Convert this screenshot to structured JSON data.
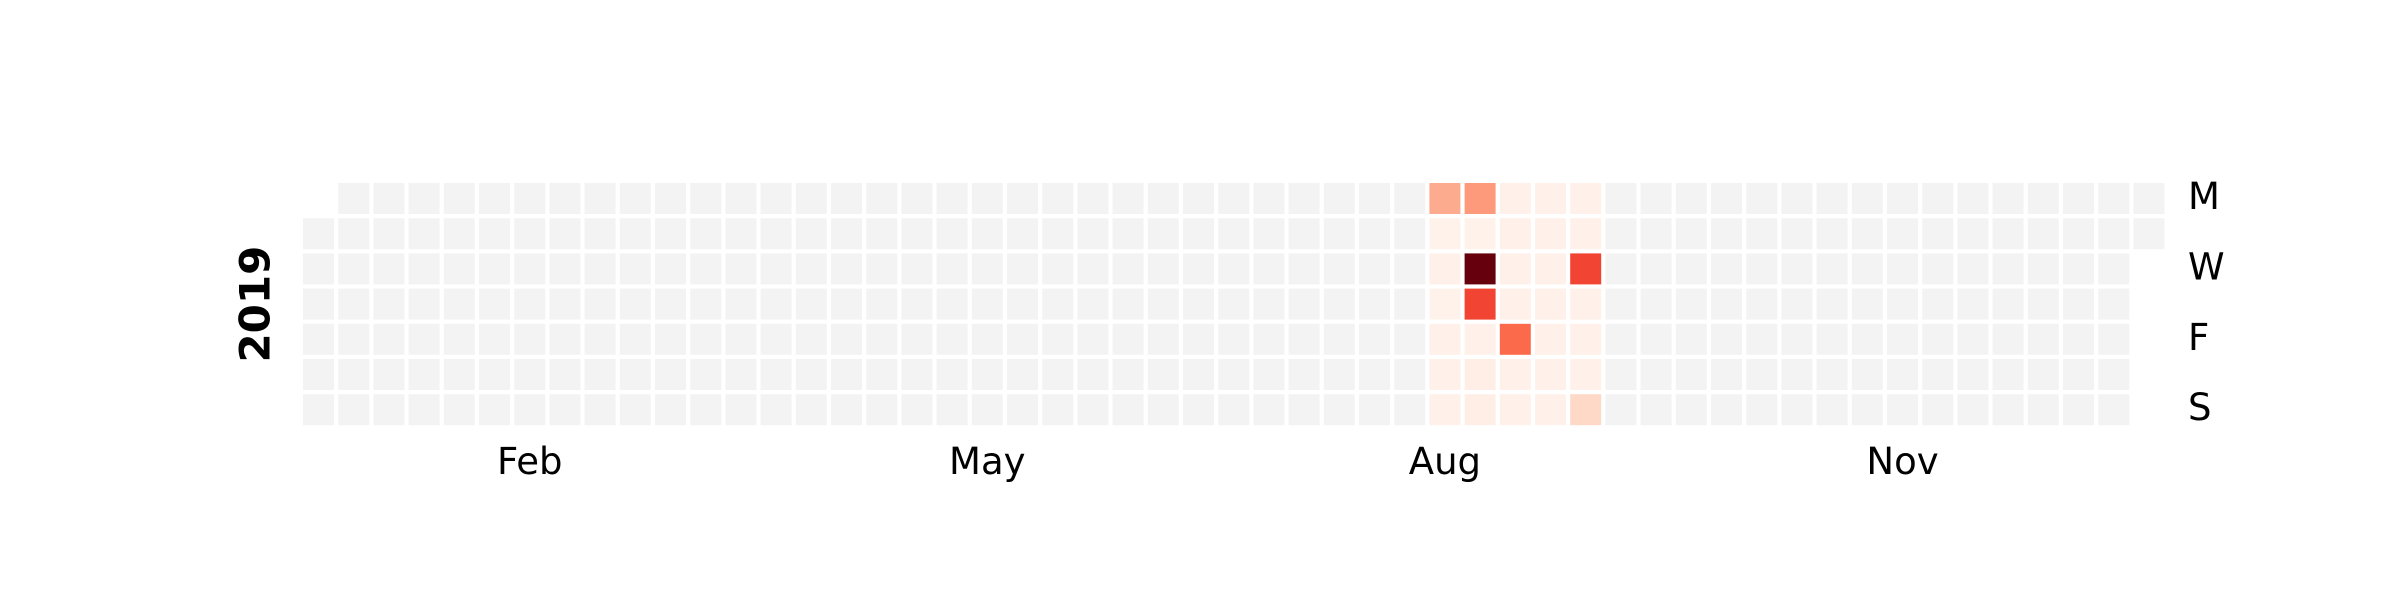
{
  "chart_data": {
    "type": "heatmap",
    "title": "",
    "year_label": "2019",
    "month_labels": [
      {
        "label": "Feb",
        "week": 6
      },
      {
        "label": "May",
        "week": 19
      },
      {
        "label": "Aug",
        "week": 32
      },
      {
        "label": "Nov",
        "week": 45
      }
    ],
    "weekday_labels": [
      {
        "label": "M",
        "day": 0
      },
      {
        "label": "W",
        "day": 2
      },
      {
        "label": "F",
        "day": 4
      },
      {
        "label": "S",
        "day": 6
      }
    ],
    "num_weeks": 53,
    "first_week_start_day": 1,
    "last_week_end_day": 1,
    "grid": false,
    "colormap": "Reds",
    "empty_color": "#f3f3f3",
    "vmax": 10,
    "cells": [
      {
        "week": 32,
        "day": 0,
        "value": 3
      },
      {
        "week": 33,
        "day": 0,
        "value": 3.5
      },
      {
        "week": 34,
        "day": 0,
        "value": 0.3
      },
      {
        "week": 35,
        "day": 0,
        "value": 0.3
      },
      {
        "week": 36,
        "day": 0,
        "value": 0.3
      },
      {
        "week": 32,
        "day": 1,
        "value": 0.2
      },
      {
        "week": 33,
        "day": 1,
        "value": 0.2
      },
      {
        "week": 34,
        "day": 1,
        "value": 0.3
      },
      {
        "week": 35,
        "day": 1,
        "value": 0.3
      },
      {
        "week": 36,
        "day": 1,
        "value": 0.3
      },
      {
        "week": 32,
        "day": 2,
        "value": 0.3
      },
      {
        "week": 33,
        "day": 2,
        "value": 10
      },
      {
        "week": 34,
        "day": 2,
        "value": 0.3
      },
      {
        "week": 35,
        "day": 2,
        "value": 0.3
      },
      {
        "week": 36,
        "day": 2,
        "value": 6
      },
      {
        "week": 32,
        "day": 3,
        "value": 0.2
      },
      {
        "week": 33,
        "day": 3,
        "value": 6
      },
      {
        "week": 34,
        "day": 3,
        "value": 0.3
      },
      {
        "week": 35,
        "day": 3,
        "value": 0.3
      },
      {
        "week": 36,
        "day": 3,
        "value": 0.3
      },
      {
        "week": 32,
        "day": 4,
        "value": 0.3
      },
      {
        "week": 33,
        "day": 4,
        "value": 0.3
      },
      {
        "week": 34,
        "day": 4,
        "value": 5
      },
      {
        "week": 35,
        "day": 4,
        "value": 0.3
      },
      {
        "week": 36,
        "day": 4,
        "value": 0.3
      },
      {
        "week": 32,
        "day": 5,
        "value": 0.3
      },
      {
        "week": 33,
        "day": 5,
        "value": 0.4
      },
      {
        "week": 34,
        "day": 5,
        "value": 0.3
      },
      {
        "week": 35,
        "day": 5,
        "value": 0.3
      },
      {
        "week": 36,
        "day": 5,
        "value": 0.3
      },
      {
        "week": 32,
        "day": 6,
        "value": 0.3
      },
      {
        "week": 33,
        "day": 6,
        "value": 0.4
      },
      {
        "week": 34,
        "day": 6,
        "value": 0.3
      },
      {
        "week": 35,
        "day": 6,
        "value": 0.3
      },
      {
        "week": 36,
        "day": 6,
        "value": 1.5
      }
    ]
  }
}
